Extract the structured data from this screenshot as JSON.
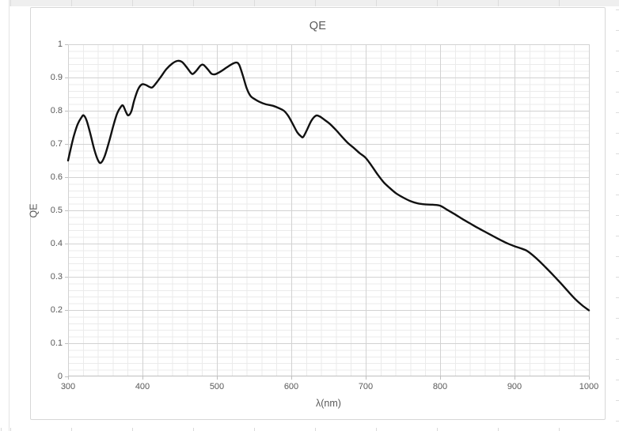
{
  "colors": {
    "curve": "#111111",
    "grid_major": "#d2d2d2",
    "grid_minor": "#ebebeb",
    "axis": "#bfbfbf",
    "text": "#595959",
    "chart_border": "#d7d7d7",
    "background": "#ffffff"
  },
  "chart_data": {
    "type": "line",
    "title": "QE",
    "xlabel": "λ(nm)",
    "ylabel": "QE",
    "xlim": [
      300,
      1000
    ],
    "ylim": [
      0,
      1
    ],
    "x_major_step": 100,
    "x_minor_step": 20,
    "y_major_step": 0.1,
    "y_minor_step": 0.02,
    "grid": "major+minor",
    "legend": "none",
    "x_ticks": [
      {
        "label": "300",
        "value": 300
      },
      {
        "label": "400",
        "value": 400
      },
      {
        "label": "500",
        "value": 500
      },
      {
        "label": "600",
        "value": 600
      },
      {
        "label": "700",
        "value": 700
      },
      {
        "label": "800",
        "value": 800
      },
      {
        "label": "900",
        "value": 900
      },
      {
        "label": "1000",
        "value": 1000
      }
    ],
    "y_ticks": [
      {
        "label": "1",
        "value": 1
      },
      {
        "label": "0.9",
        "value": 0.9
      },
      {
        "label": "0.8",
        "value": 0.8
      },
      {
        "label": "0.7",
        "value": 0.7
      },
      {
        "label": "0.6",
        "value": 0.6
      },
      {
        "label": "0.5",
        "value": 0.5
      },
      {
        "label": "0.4",
        "value": 0.4
      },
      {
        "label": "0.3",
        "value": 0.3
      },
      {
        "label": "0.2",
        "value": 0.2
      },
      {
        "label": "0.1",
        "value": 0.1
      },
      {
        "label": "0",
        "value": 0
      }
    ],
    "series": [
      {
        "name": "QE",
        "points": [
          [
            300,
            0.65
          ],
          [
            304,
            0.69
          ],
          [
            308,
            0.726
          ],
          [
            313,
            0.76
          ],
          [
            318,
            0.78
          ],
          [
            321,
            0.786
          ],
          [
            325,
            0.77
          ],
          [
            330,
            0.73
          ],
          [
            335,
            0.685
          ],
          [
            340,
            0.652
          ],
          [
            344,
            0.643
          ],
          [
            349,
            0.662
          ],
          [
            355,
            0.706
          ],
          [
            361,
            0.756
          ],
          [
            366,
            0.792
          ],
          [
            371,
            0.812
          ],
          [
            374,
            0.815
          ],
          [
            378,
            0.795
          ],
          [
            381,
            0.786
          ],
          [
            385,
            0.798
          ],
          [
            389,
            0.832
          ],
          [
            394,
            0.864
          ],
          [
            399,
            0.879
          ],
          [
            404,
            0.878
          ],
          [
            409,
            0.872
          ],
          [
            413,
            0.87
          ],
          [
            418,
            0.882
          ],
          [
            425,
            0.903
          ],
          [
            432,
            0.925
          ],
          [
            440,
            0.942
          ],
          [
            447,
            0.95
          ],
          [
            453,
            0.947
          ],
          [
            459,
            0.932
          ],
          [
            465,
            0.914
          ],
          [
            468,
            0.911
          ],
          [
            473,
            0.922
          ],
          [
            478,
            0.936
          ],
          [
            482,
            0.938
          ],
          [
            488,
            0.924
          ],
          [
            493,
            0.911
          ],
          [
            498,
            0.91
          ],
          [
            505,
            0.918
          ],
          [
            513,
            0.93
          ],
          [
            520,
            0.94
          ],
          [
            526,
            0.945
          ],
          [
            530,
            0.938
          ],
          [
            535,
            0.905
          ],
          [
            540,
            0.868
          ],
          [
            545,
            0.845
          ],
          [
            550,
            0.836
          ],
          [
            557,
            0.827
          ],
          [
            565,
            0.82
          ],
          [
            575,
            0.815
          ],
          [
            583,
            0.808
          ],
          [
            590,
            0.8
          ],
          [
            596,
            0.784
          ],
          [
            602,
            0.76
          ],
          [
            608,
            0.735
          ],
          [
            613,
            0.723
          ],
          [
            616,
            0.721
          ],
          [
            621,
            0.742
          ],
          [
            627,
            0.77
          ],
          [
            633,
            0.785
          ],
          [
            638,
            0.783
          ],
          [
            645,
            0.772
          ],
          [
            652,
            0.76
          ],
          [
            660,
            0.742
          ],
          [
            668,
            0.722
          ],
          [
            676,
            0.703
          ],
          [
            684,
            0.688
          ],
          [
            692,
            0.672
          ],
          [
            700,
            0.658
          ],
          [
            708,
            0.634
          ],
          [
            716,
            0.608
          ],
          [
            724,
            0.585
          ],
          [
            732,
            0.568
          ],
          [
            741,
            0.551
          ],
          [
            750,
            0.539
          ],
          [
            760,
            0.528
          ],
          [
            770,
            0.521
          ],
          [
            780,
            0.518
          ],
          [
            790,
            0.517
          ],
          [
            800,
            0.514
          ],
          [
            810,
            0.501
          ],
          [
            820,
            0.488
          ],
          [
            830,
            0.474
          ],
          [
            840,
            0.461
          ],
          [
            850,
            0.448
          ],
          [
            860,
            0.436
          ],
          [
            870,
            0.424
          ],
          [
            880,
            0.412
          ],
          [
            890,
            0.401
          ],
          [
            900,
            0.392
          ],
          [
            908,
            0.386
          ],
          [
            916,
            0.379
          ],
          [
            924,
            0.366
          ],
          [
            933,
            0.348
          ],
          [
            942,
            0.328
          ],
          [
            952,
            0.305
          ],
          [
            962,
            0.281
          ],
          [
            972,
            0.256
          ],
          [
            982,
            0.232
          ],
          [
            991,
            0.214
          ],
          [
            1000,
            0.199
          ]
        ]
      }
    ]
  }
}
